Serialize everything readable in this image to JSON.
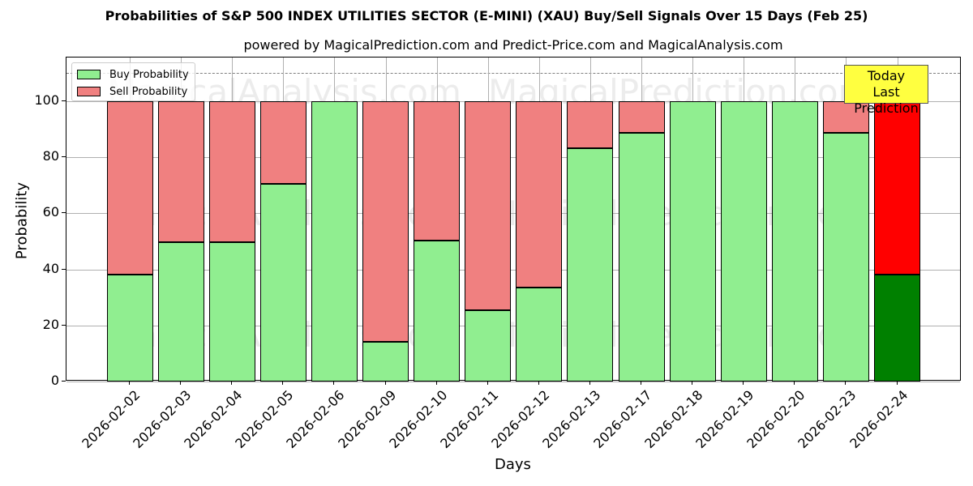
{
  "title": "Probabilities of S&P 500 INDEX UTILITIES SECTOR (E-MINI) (XAU) Buy/Sell Signals Over 15 Days (Feb 25)",
  "subtitle": "powered by MagicalPrediction.com and Predict-Price.com and MagicalAnalysis.com",
  "legend": {
    "buy": "Buy Probability",
    "sell": "Sell Probability"
  },
  "annotation": {
    "line1": "Today",
    "line2": "Last Prediction"
  },
  "watermarks": [
    "MagicalAnalysis.com",
    "MagicalPrediction.com"
  ],
  "colors": {
    "buy": "#90ee90",
    "sell": "#f08080",
    "today_buy": "#008000",
    "today_sell": "#ff0000",
    "annotation_bg": "#ffff40"
  },
  "chart_data": {
    "type": "bar",
    "stacked": true,
    "title": "Probabilities of S&P 500 INDEX UTILITIES SECTOR (E-MINI) (XAU) Buy/Sell Signals Over 15 Days (Feb 25)",
    "subtitle": "powered by MagicalPrediction.com and Predict-Price.com and MagicalAnalysis.com",
    "xlabel": "Days",
    "ylabel": "Probability",
    "ylim": [
      0,
      115
    ],
    "yticks": [
      0,
      20,
      40,
      60,
      80,
      100
    ],
    "grid": true,
    "legend_position": "upper left",
    "reference_line": {
      "y": 110,
      "style": "dashed"
    },
    "categories": [
      "2026-02-02",
      "2026-02-03",
      "2026-02-04",
      "2026-02-05",
      "2026-02-06",
      "2026-02-09",
      "2026-02-10",
      "2026-02-11",
      "2026-02-12",
      "2026-02-13",
      "2026-02-17",
      "2026-02-18",
      "2026-02-19",
      "2026-02-20",
      "2026-02-23",
      "2026-02-24"
    ],
    "series": [
      {
        "name": "Buy Probability",
        "values": [
          38.2,
          49.7,
          49.7,
          70.5,
          100,
          14.2,
          50.3,
          25.4,
          33.5,
          83.2,
          88.7,
          100,
          100,
          100,
          88.7,
          38.2
        ]
      },
      {
        "name": "Sell Probability",
        "values": [
          61.8,
          50.3,
          50.3,
          29.5,
          0,
          85.8,
          49.7,
          74.6,
          66.5,
          16.8,
          11.3,
          0,
          0,
          0,
          11.3,
          61.8
        ]
      }
    ],
    "annotations": [
      {
        "text": "Today\nLast Prediction",
        "x": "2026-02-24"
      }
    ]
  }
}
